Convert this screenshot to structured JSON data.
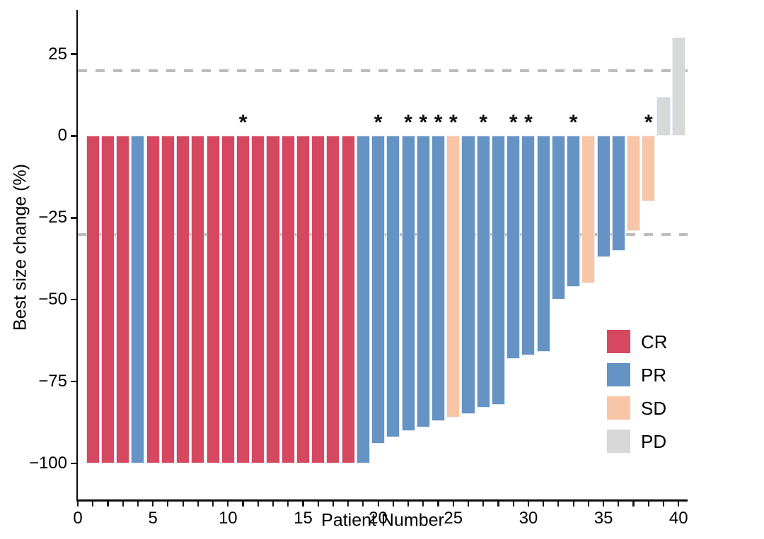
{
  "chart_data": {
    "type": "bar",
    "title": "",
    "xlabel": "Patient Number",
    "ylabel": "Best size change (%)",
    "xlim": [
      0,
      40.6
    ],
    "ylim": [
      -111,
      38.5
    ],
    "x_major_ticks": [
      0,
      5,
      10,
      15,
      20,
      25,
      30,
      35,
      40
    ],
    "x_minor_tick_every": 1,
    "x_tick_min": 0,
    "x_tick_max": 40,
    "y_ticks": [
      25,
      0,
      -25,
      -50,
      -75,
      -100
    ],
    "reference_lines": [
      20,
      -30
    ],
    "reference_line_color": "#bdbdbd",
    "grid": false,
    "bar_width": 0.9,
    "asterisk_marker": "*",
    "series_colors": {
      "CR": "#d5485f",
      "PR": "#6593c4",
      "SD": "#f8c6a6",
      "PD": "#d8d8d8"
    },
    "legend": {
      "position": "inside-right",
      "entries": [
        {
          "label": "CR",
          "color": "#d5485f"
        },
        {
          "label": "PR",
          "color": "#6593c4"
        },
        {
          "label": "SD",
          "color": "#f8c6a6"
        },
        {
          "label": "PD",
          "color": "#d8d8d8"
        }
      ]
    },
    "patients": [
      {
        "patient": 1,
        "value": -100,
        "response": "CR",
        "star": false
      },
      {
        "patient": 2,
        "value": -100,
        "response": "CR",
        "star": false
      },
      {
        "patient": 3,
        "value": -100,
        "response": "CR",
        "star": false
      },
      {
        "patient": 4,
        "value": -100,
        "response": "PR",
        "star": false
      },
      {
        "patient": 5,
        "value": -100,
        "response": "CR",
        "star": false
      },
      {
        "patient": 6,
        "value": -100,
        "response": "CR",
        "star": false
      },
      {
        "patient": 7,
        "value": -100,
        "response": "CR",
        "star": false
      },
      {
        "patient": 8,
        "value": -100,
        "response": "CR",
        "star": false
      },
      {
        "patient": 9,
        "value": -100,
        "response": "CR",
        "star": false
      },
      {
        "patient": 10,
        "value": -100,
        "response": "CR",
        "star": false
      },
      {
        "patient": 11,
        "value": -100,
        "response": "CR",
        "star": true
      },
      {
        "patient": 12,
        "value": -100,
        "response": "CR",
        "star": false
      },
      {
        "patient": 13,
        "value": -100,
        "response": "CR",
        "star": false
      },
      {
        "patient": 14,
        "value": -100,
        "response": "CR",
        "star": false
      },
      {
        "patient": 15,
        "value": -100,
        "response": "CR",
        "star": false
      },
      {
        "patient": 16,
        "value": -100,
        "response": "CR",
        "star": false
      },
      {
        "patient": 17,
        "value": -100,
        "response": "CR",
        "star": false
      },
      {
        "patient": 18,
        "value": -100,
        "response": "CR",
        "star": false
      },
      {
        "patient": 19,
        "value": -100,
        "response": "PR",
        "star": false
      },
      {
        "patient": 20,
        "value": -94,
        "response": "PR",
        "star": true
      },
      {
        "patient": 21,
        "value": -92,
        "response": "PR",
        "star": false
      },
      {
        "patient": 22,
        "value": -90,
        "response": "PR",
        "star": true
      },
      {
        "patient": 23,
        "value": -89,
        "response": "PR",
        "star": true
      },
      {
        "patient": 24,
        "value": -87,
        "response": "PR",
        "star": true
      },
      {
        "patient": 25,
        "value": -86,
        "response": "SD",
        "star": true
      },
      {
        "patient": 26,
        "value": -85,
        "response": "PR",
        "star": false
      },
      {
        "patient": 27,
        "value": -83,
        "response": "PR",
        "star": true
      },
      {
        "patient": 28,
        "value": -82,
        "response": "PR",
        "star": false
      },
      {
        "patient": 29,
        "value": -68,
        "response": "PR",
        "star": true
      },
      {
        "patient": 30,
        "value": -67,
        "response": "PR",
        "star": true
      },
      {
        "patient": 31,
        "value": -66,
        "response": "PR",
        "star": false
      },
      {
        "patient": 32,
        "value": -50,
        "response": "PR",
        "star": false
      },
      {
        "patient": 33,
        "value": -46,
        "response": "PR",
        "star": true
      },
      {
        "patient": 34,
        "value": -45,
        "response": "SD",
        "star": false
      },
      {
        "patient": 35,
        "value": -37,
        "response": "PR",
        "star": false
      },
      {
        "patient": 36,
        "value": -35,
        "response": "PR",
        "star": false
      },
      {
        "patient": 37,
        "value": -29,
        "response": "SD",
        "star": false
      },
      {
        "patient": 38,
        "value": -20,
        "response": "SD",
        "star": true
      },
      {
        "patient": 39,
        "value": 12,
        "response": "PD",
        "star": false
      },
      {
        "patient": 40,
        "value": 30,
        "response": "PD",
        "star": false
      }
    ]
  }
}
